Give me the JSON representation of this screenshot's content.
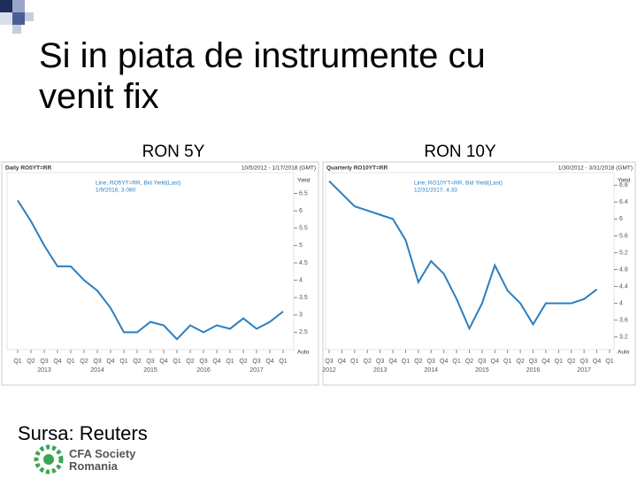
{
  "slide": {
    "title": "Si in piata de instrumente cu venit fix",
    "source": "Sursa: Reuters",
    "logo": [
      "CFA Society",
      "Romania"
    ]
  },
  "chart_data": [
    {
      "type": "line",
      "title": "RON 5Y",
      "header": "Daily RO5YT=RR",
      "date_range": "10/5/2012 - 1/17/2018 (GMT)",
      "y_label": "Yield",
      "button": "Auto",
      "last_label": "1/9/2018, 3.080",
      "categories": [
        "Q1",
        "Q2",
        "Q3",
        "Q4",
        "Q1",
        "Q2",
        "Q3",
        "Q4",
        "Q1",
        "Q2",
        "Q3",
        "Q4",
        "Q1",
        "Q2",
        "Q3",
        "Q4",
        "Q1",
        "Q2",
        "Q3",
        "Q4",
        "Q1"
      ],
      "years": [
        "2013",
        "2014",
        "2015",
        "2016",
        "2017"
      ],
      "series": [
        {
          "name": "Line; RO5YT=RR, Bid Yield(Last)",
          "color": "#2a7fc1",
          "values": [
            6.3,
            5.7,
            5.0,
            4.4,
            4.4,
            4.0,
            3.7,
            3.2,
            2.5,
            2.5,
            2.8,
            2.7,
            2.3,
            2.7,
            2.5,
            2.7,
            2.6,
            2.9,
            2.6,
            2.8,
            3.1
          ]
        }
      ],
      "ylim": [
        2.0,
        7.1
      ],
      "yticks": [
        2.5,
        3,
        3.5,
        4,
        4.5,
        5,
        5.5,
        6,
        6.5
      ]
    },
    {
      "type": "line",
      "title": "RON 10Y",
      "header": "Quarterly RO10YT=RR",
      "date_range": "1/30/2012 - 3/31/2018 (GMT)",
      "y_label": "Yield",
      "button": "Auto",
      "last_label": "12/31/2017, 4.33",
      "categories": [
        "Q3",
        "Q4",
        "Q1",
        "Q2",
        "Q3",
        "Q4",
        "Q1",
        "Q2",
        "Q3",
        "Q4",
        "Q1",
        "Q2",
        "Q3",
        "Q4",
        "Q1",
        "Q2",
        "Q3",
        "Q4",
        "Q1",
        "Q2",
        "Q3",
        "Q4",
        "Q1"
      ],
      "years": [
        "2012",
        "2013",
        "2014",
        "2015",
        "2016",
        "2017"
      ],
      "series": [
        {
          "name": "Line; RO10YT=RR, Bid Yield(Last)",
          "color": "#2a7fc1",
          "values": [
            6.9,
            6.6,
            6.3,
            6.2,
            6.1,
            6.0,
            5.5,
            4.5,
            5.0,
            4.7,
            4.1,
            3.4,
            4.0,
            4.9,
            4.3,
            4.0,
            3.5,
            4.0,
            4.0,
            4.0,
            4.1,
            4.33,
            null
          ]
        }
      ],
      "ylim": [
        2.9,
        7.1
      ],
      "yticks": [
        3.2,
        3.6,
        4,
        4.4,
        4.8,
        5.2,
        5.6,
        6,
        6.4,
        6.8
      ]
    }
  ]
}
